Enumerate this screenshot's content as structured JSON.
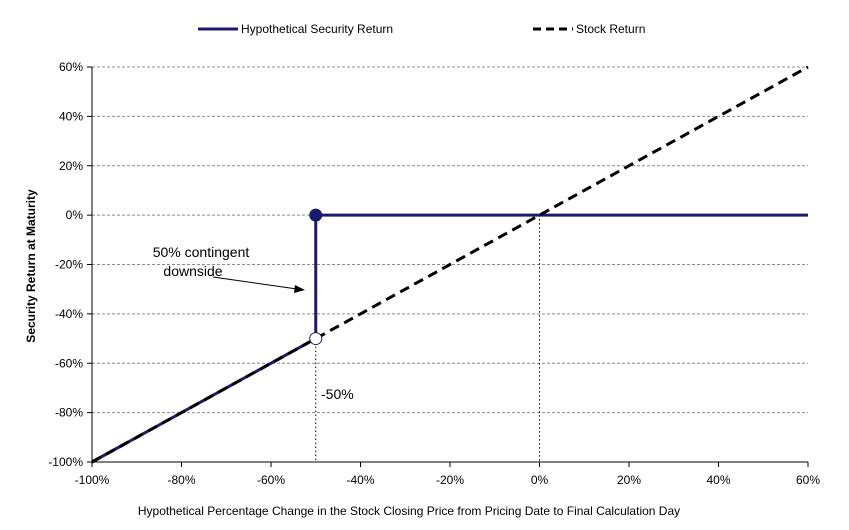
{
  "chart_data": {
    "type": "line",
    "xlabel": "Hypothetical Percentage Change in the Stock Closing Price from Pricing Date to Final Calculation Day",
    "ylabel": "Security Return at Maturity",
    "xlim": [
      -100,
      60
    ],
    "ylim": [
      -100,
      60
    ],
    "x_ticks": [
      -100,
      -80,
      -60,
      -40,
      -20,
      0,
      20,
      40,
      60
    ],
    "y_ticks": [
      -100,
      -80,
      -60,
      -40,
      -20,
      0,
      20,
      40,
      60
    ],
    "x_tick_labels": [
      "-100%",
      "-80%",
      "-60%",
      "-40%",
      "-20%",
      "0%",
      "20%",
      "40%",
      "60%"
    ],
    "y_tick_labels": [
      "-100%",
      "-80%",
      "-60%",
      "-40%",
      "-20%",
      "0%",
      "20%",
      "40%",
      "60%"
    ],
    "grid": "horizontal dashed",
    "legend_position": "top",
    "series": [
      {
        "name": "Hypothetical Security Return",
        "color": "#1a1a6e",
        "style": "solid",
        "segments": [
          [
            [
              -100,
              -100
            ],
            [
              -50,
              -50
            ]
          ],
          [
            [
              -50,
              -50
            ],
            [
              -50,
              0
            ]
          ],
          [
            [
              -50,
              0
            ],
            [
              60,
              0
            ]
          ]
        ]
      },
      {
        "name": "Stock Return",
        "color": "#000000",
        "style": "dashed",
        "points": [
          [
            -100,
            -100
          ],
          [
            60,
            60
          ]
        ]
      }
    ],
    "markers": [
      {
        "x": -50,
        "y": 0,
        "type": "filled"
      },
      {
        "x": -50,
        "y": -50,
        "type": "open"
      }
    ],
    "reference_lines": [
      {
        "x": -50,
        "from_y": -50,
        "to_y": -100
      },
      {
        "x": 0,
        "from_y": 0,
        "to_y": -100
      }
    ],
    "annotations": [
      {
        "text_lines": [
          "50% contingent",
          "downside"
        ]
      },
      {
        "text": "-50%"
      }
    ]
  }
}
